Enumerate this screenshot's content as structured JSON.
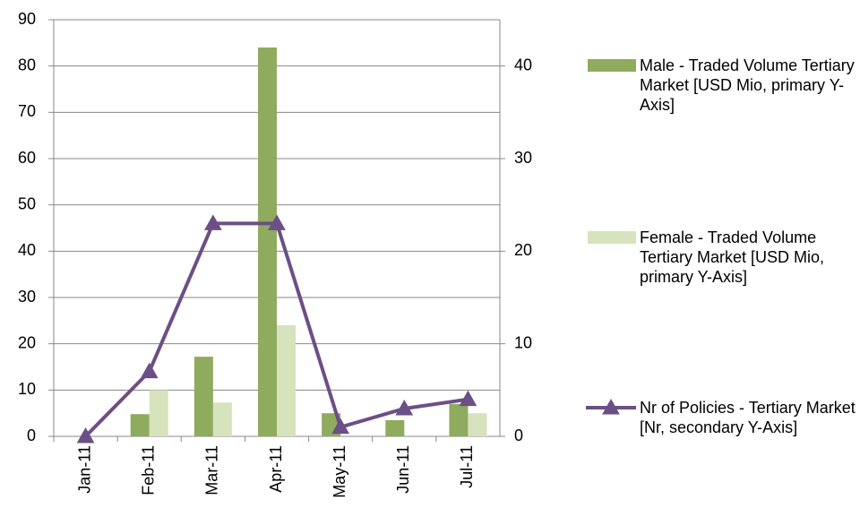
{
  "chart_data": {
    "type": "bar_line",
    "categories": [
      "Jan-11",
      "Feb-11",
      "Mar-11",
      "Apr-11",
      "May-11",
      "Jun-11",
      "Jul-11"
    ],
    "series": [
      {
        "name": "Male - Traded Volume Tertiary Market [USD Mio, primary Y-Axis]",
        "type": "bar",
        "color": "#8fab5e",
        "values": [
          0,
          4.8,
          17.2,
          84,
          5,
          3.5,
          7
        ]
      },
      {
        "name": "Female - Traded Volume Tertiary Market [USD Mio, primary Y-Axis]",
        "type": "bar",
        "color": "#d6e3bc",
        "values": [
          0,
          10,
          7.3,
          24,
          0,
          0,
          5
        ]
      },
      {
        "name": "Nr of Policies - Tertiary Market [Nr, secondary Y-Axis]",
        "type": "line",
        "axis": "y2",
        "color": "#6b4f86",
        "values": [
          0,
          7,
          23,
          23,
          1,
          3,
          4
        ]
      }
    ],
    "ylim": [
      0,
      90
    ],
    "yticks": [
      0,
      10,
      20,
      30,
      40,
      50,
      60,
      70,
      80,
      90
    ],
    "y2lim": [
      0,
      45
    ],
    "y2ticks": [
      0,
      10,
      20,
      30,
      40
    ],
    "grid": true,
    "legend": "right"
  }
}
